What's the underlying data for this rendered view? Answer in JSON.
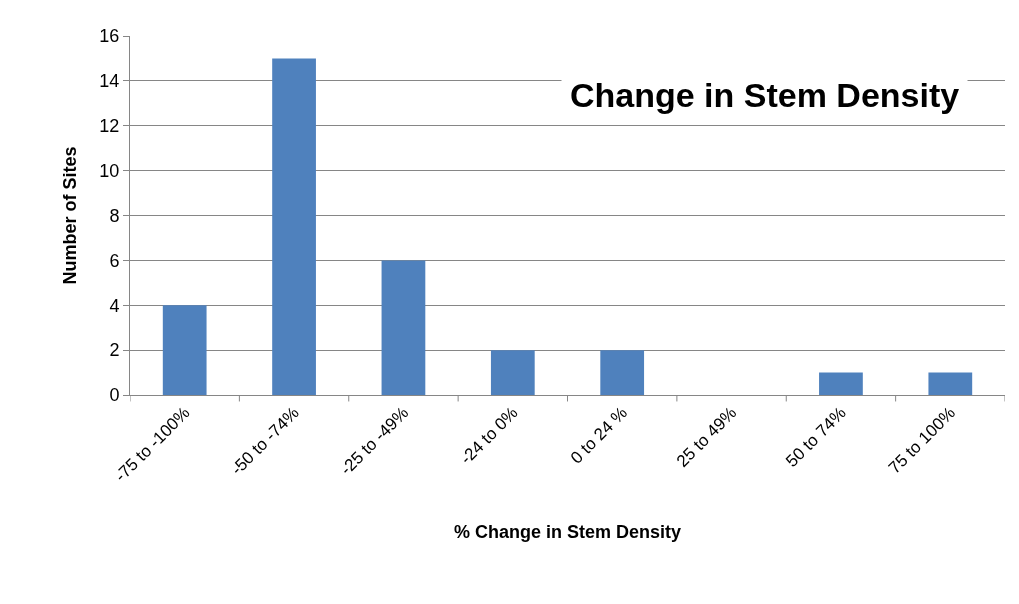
{
  "chart_data": {
    "type": "bar",
    "title": "Change in Stem Density",
    "xlabel": "% Change in Stem Density",
    "ylabel": "Number of Sites",
    "categories": [
      "-75 to -100%",
      "-50 to -74%",
      "-25 to -49%",
      "-24 to 0%",
      "0 to 24 %",
      "25 to 49%",
      "50 to 74%",
      "75 to 100%"
    ],
    "values": [
      4,
      15,
      6,
      2,
      2,
      0,
      1,
      1
    ],
    "color": "#4f81bd",
    "ylim": [
      0,
      16
    ],
    "yticks": [
      0,
      2,
      4,
      6,
      8,
      10,
      12,
      14,
      16
    ],
    "grid": "y"
  }
}
